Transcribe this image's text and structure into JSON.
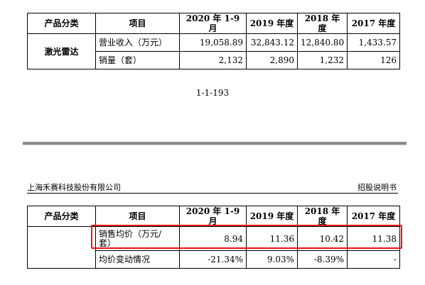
{
  "table1": {
    "headers": [
      "产品分类",
      "项目",
      "2020 年 1-9 月",
      "2019 年度",
      "2018 年度",
      "2017 年度"
    ],
    "category": "激光雷达",
    "rows": [
      {
        "item": "营业收入（万元）",
        "v2020": "19,058.89",
        "v2019": "32,843.12",
        "v2018": "12,840.80",
        "v2017": "1,433.57"
      },
      {
        "item": "销量（套）",
        "v2020": "2,132",
        "v2019": "2,890",
        "v2018": "1,232",
        "v2017": "126"
      }
    ]
  },
  "page_number": "1-1-193",
  "header": {
    "company": "上海禾赛科技股份有限公司",
    "doc_type": "招股说明书"
  },
  "table2": {
    "headers": [
      "产品分类",
      "项目",
      "2020 年 1-9 月",
      "2019 年度",
      "2018 年度",
      "2017 年度"
    ],
    "rows": [
      {
        "item_line1": "销售均价（万元/",
        "item_line2": "套）",
        "v2020": "8.94",
        "v2019": "11.36",
        "v2018": "10.42",
        "v2017": "11.38"
      },
      {
        "item": "均价变动情况",
        "v2020": "-21.34%",
        "v2019": "9.03%",
        "v2018": "-8.39%",
        "v2017": "-"
      }
    ]
  },
  "colors": {
    "highlight": "#e11111",
    "divider": "#8c8c8c"
  }
}
